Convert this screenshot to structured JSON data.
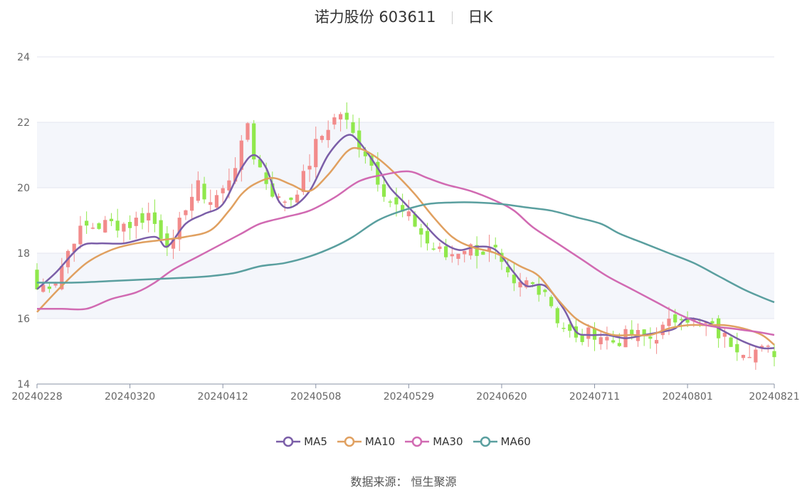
{
  "header": {
    "stock_name": "诺力股份 603611",
    "period": "日K"
  },
  "source": "数据来源： 恒生聚源",
  "colors": {
    "up": "#f28b8b",
    "down": "#90e84c",
    "band": "#f4f6fb",
    "grid": "#e3e6ef"
  },
  "chart_data": {
    "type": "candlestick",
    "y_axis": {
      "min": 14,
      "max": 24,
      "ticks": [
        14,
        16,
        18,
        20,
        22,
        24
      ]
    },
    "x_ticks": [
      "20240228",
      "20240320",
      "20240412",
      "20240508",
      "20240529",
      "20240620",
      "20240711",
      "20240801",
      "20240821"
    ],
    "x_tick_index": [
      0,
      15,
      30,
      45,
      60,
      75,
      90,
      105,
      119
    ],
    "bar_count": 120,
    "close_anchors": [
      [
        0,
        16.9
      ],
      [
        3,
        17.2
      ],
      [
        6,
        18.5
      ],
      [
        8,
        18.8
      ],
      [
        12,
        18.9
      ],
      [
        15,
        18.9
      ],
      [
        18,
        19.2
      ],
      [
        20,
        18.6
      ],
      [
        22,
        18.2
      ],
      [
        24,
        19.5
      ],
      [
        26,
        20.0
      ],
      [
        28,
        19.6
      ],
      [
        30,
        19.9
      ],
      [
        33,
        21.2
      ],
      [
        34,
        22.0
      ],
      [
        35,
        21.0
      ],
      [
        37,
        20.2
      ],
      [
        39,
        19.6
      ],
      [
        41,
        19.7
      ],
      [
        43,
        20.3
      ],
      [
        45,
        21.3
      ],
      [
        47,
        21.9
      ],
      [
        49,
        22.3
      ],
      [
        51,
        21.6
      ],
      [
        53,
        21.1
      ],
      [
        55,
        20.3
      ],
      [
        57,
        19.6
      ],
      [
        59,
        19.2
      ],
      [
        61,
        18.9
      ],
      [
        63,
        18.3
      ],
      [
        66,
        17.9
      ],
      [
        69,
        18.2
      ],
      [
        71,
        18.1
      ],
      [
        74,
        18.0
      ],
      [
        75,
        17.5
      ],
      [
        77,
        16.9
      ],
      [
        79,
        17.1
      ],
      [
        82,
        16.9
      ],
      [
        84,
        16.0
      ],
      [
        87,
        15.3
      ],
      [
        90,
        15.6
      ],
      [
        93,
        15.3
      ],
      [
        96,
        15.5
      ],
      [
        99,
        15.4
      ],
      [
        102,
        15.8
      ],
      [
        104,
        16.2
      ],
      [
        106,
        15.9
      ],
      [
        108,
        15.8
      ],
      [
        111,
        15.4
      ],
      [
        114,
        15.1
      ],
      [
        117,
        15.0
      ],
      [
        119,
        15.0
      ]
    ],
    "ma_series": [
      {
        "name": "MA5",
        "color": "#7b5ea8",
        "points": [
          [
            0,
            16.9
          ],
          [
            3,
            17.4
          ],
          [
            7,
            18.2
          ],
          [
            10,
            18.3
          ],
          [
            14,
            18.3
          ],
          [
            19,
            18.5
          ],
          [
            21,
            18.2
          ],
          [
            24,
            18.9
          ],
          [
            27,
            19.2
          ],
          [
            30,
            19.5
          ],
          [
            33,
            20.6
          ],
          [
            35,
            21.0
          ],
          [
            37,
            20.6
          ],
          [
            39,
            19.6
          ],
          [
            41,
            19.4
          ],
          [
            44,
            19.9
          ],
          [
            47,
            21.0
          ],
          [
            50,
            21.6
          ],
          [
            52,
            21.4
          ],
          [
            55,
            20.6
          ],
          [
            57,
            20.0
          ],
          [
            59,
            19.6
          ],
          [
            62,
            19.0
          ],
          [
            65,
            18.4
          ],
          [
            68,
            18.1
          ],
          [
            71,
            18.2
          ],
          [
            74,
            18.1
          ],
          [
            77,
            17.4
          ],
          [
            79,
            17.0
          ],
          [
            82,
            17.0
          ],
          [
            85,
            16.3
          ],
          [
            87,
            15.6
          ],
          [
            89,
            15.5
          ],
          [
            92,
            15.5
          ],
          [
            95,
            15.4
          ],
          [
            98,
            15.5
          ],
          [
            101,
            15.6
          ],
          [
            103,
            15.7
          ],
          [
            105,
            16.0
          ],
          [
            108,
            15.9
          ],
          [
            111,
            15.6
          ],
          [
            114,
            15.3
          ],
          [
            117,
            15.1
          ],
          [
            119,
            15.1
          ]
        ]
      },
      {
        "name": "MA10",
        "color": "#e0a060",
        "points": [
          [
            0,
            16.2
          ],
          [
            4,
            17.0
          ],
          [
            8,
            17.7
          ],
          [
            12,
            18.1
          ],
          [
            16,
            18.3
          ],
          [
            20,
            18.4
          ],
          [
            24,
            18.5
          ],
          [
            28,
            18.7
          ],
          [
            31,
            19.3
          ],
          [
            33,
            19.8
          ],
          [
            35,
            20.1
          ],
          [
            38,
            20.3
          ],
          [
            41,
            20.1
          ],
          [
            44,
            19.9
          ],
          [
            47,
            20.4
          ],
          [
            50,
            21.1
          ],
          [
            52,
            21.2
          ],
          [
            55,
            20.9
          ],
          [
            58,
            20.4
          ],
          [
            61,
            19.8
          ],
          [
            64,
            19.1
          ],
          [
            67,
            18.5
          ],
          [
            70,
            18.2
          ],
          [
            74,
            18.0
          ],
          [
            78,
            17.6
          ],
          [
            81,
            17.3
          ],
          [
            84,
            16.6
          ],
          [
            87,
            16.0
          ],
          [
            90,
            15.7
          ],
          [
            93,
            15.5
          ],
          [
            96,
            15.5
          ],
          [
            99,
            15.5
          ],
          [
            102,
            15.7
          ],
          [
            105,
            15.8
          ],
          [
            108,
            15.8
          ],
          [
            111,
            15.8
          ],
          [
            114,
            15.7
          ],
          [
            117,
            15.5
          ],
          [
            119,
            15.2
          ]
        ]
      },
      {
        "name": "MA30",
        "color": "#d16ab2",
        "points": [
          [
            0,
            16.3
          ],
          [
            4,
            16.3
          ],
          [
            8,
            16.3
          ],
          [
            12,
            16.6
          ],
          [
            16,
            16.8
          ],
          [
            19,
            17.1
          ],
          [
            22,
            17.5
          ],
          [
            26,
            17.9
          ],
          [
            30,
            18.3
          ],
          [
            33,
            18.6
          ],
          [
            36,
            18.9
          ],
          [
            40,
            19.1
          ],
          [
            44,
            19.3
          ],
          [
            48,
            19.7
          ],
          [
            52,
            20.2
          ],
          [
            56,
            20.4
          ],
          [
            60,
            20.5
          ],
          [
            63,
            20.3
          ],
          [
            66,
            20.1
          ],
          [
            70,
            19.9
          ],
          [
            74,
            19.6
          ],
          [
            77,
            19.3
          ],
          [
            80,
            18.8
          ],
          [
            84,
            18.3
          ],
          [
            88,
            17.8
          ],
          [
            92,
            17.3
          ],
          [
            96,
            16.9
          ],
          [
            100,
            16.5
          ],
          [
            104,
            16.1
          ],
          [
            108,
            15.8
          ],
          [
            112,
            15.7
          ],
          [
            116,
            15.6
          ],
          [
            119,
            15.5
          ]
        ]
      },
      {
        "name": "MA60",
        "color": "#5a9f9f",
        "points": [
          [
            0,
            17.1
          ],
          [
            6,
            17.1
          ],
          [
            12,
            17.15
          ],
          [
            18,
            17.2
          ],
          [
            24,
            17.25
          ],
          [
            28,
            17.3
          ],
          [
            32,
            17.4
          ],
          [
            36,
            17.6
          ],
          [
            40,
            17.7
          ],
          [
            44,
            17.9
          ],
          [
            48,
            18.2
          ],
          [
            51,
            18.5
          ],
          [
            55,
            19.0
          ],
          [
            59,
            19.3
          ],
          [
            63,
            19.5
          ],
          [
            67,
            19.55
          ],
          [
            71,
            19.55
          ],
          [
            75,
            19.5
          ],
          [
            79,
            19.4
          ],
          [
            83,
            19.3
          ],
          [
            87,
            19.1
          ],
          [
            91,
            18.9
          ],
          [
            94,
            18.6
          ],
          [
            98,
            18.3
          ],
          [
            102,
            18.0
          ],
          [
            106,
            17.7
          ],
          [
            110,
            17.3
          ],
          [
            114,
            16.9
          ],
          [
            117,
            16.65
          ],
          [
            119,
            16.5
          ]
        ]
      }
    ]
  }
}
